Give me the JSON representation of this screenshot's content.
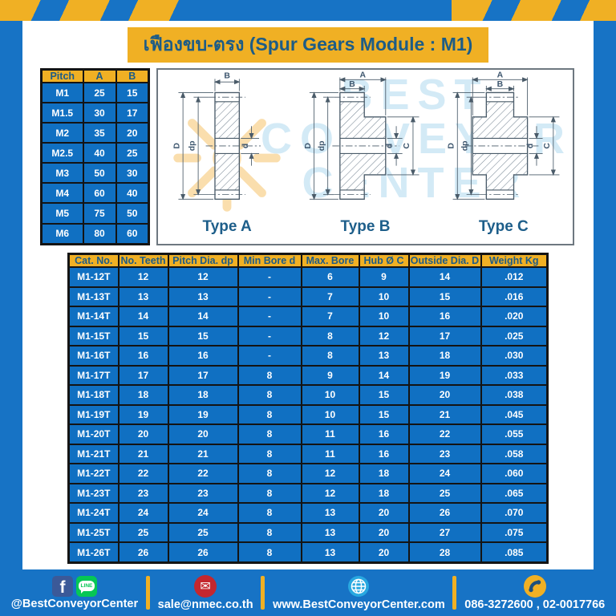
{
  "title": "เฟืองขบ-ตรง (Spur Gears Module : M1)",
  "colors": {
    "background_blue": "#1773c5",
    "cell_blue": "#1070c2",
    "accent_yellow": "#f0b024",
    "navy_text": "#1d5c86",
    "facebook_blue": "#3b5998",
    "line_green": "#06c755",
    "email_red": "#c4272e",
    "globe_blue": "#29a8e0"
  },
  "pitch_table": {
    "headers": [
      "Pitch",
      "A",
      "B"
    ],
    "rows": [
      [
        "M1",
        "25",
        "15"
      ],
      [
        "M1.5",
        "30",
        "17"
      ],
      [
        "M2",
        "35",
        "20"
      ],
      [
        "M2.5",
        "40",
        "25"
      ],
      [
        "M3",
        "50",
        "30"
      ],
      [
        "M4",
        "60",
        "40"
      ],
      [
        "M5",
        "75",
        "50"
      ],
      [
        "M6",
        "80",
        "60"
      ]
    ]
  },
  "drawings": {
    "watermark": {
      "line1": "BEST",
      "line2": "CONVEYOR",
      "line3": "CENTER"
    },
    "type_a": {
      "label": "Type A",
      "dim_face_width": "B",
      "dim_outside": "D",
      "dim_pitch": "dp",
      "dim_bore": "d"
    },
    "type_b": {
      "label": "Type B",
      "dim_total_width": "A",
      "dim_face_width": "B",
      "dim_outside": "D",
      "dim_pitch": "dp",
      "dim_bore": "d",
      "dim_hub": "C"
    },
    "type_c": {
      "label": "Type C",
      "dim_total_width": "A",
      "dim_face_width": "B",
      "dim_outside": "D",
      "dim_pitch": "dp",
      "dim_bore": "d",
      "dim_hub": "C"
    }
  },
  "main_table": {
    "headers": [
      "Cat. No.",
      "No. Teeth",
      "Pitch Dia. dp",
      "Min Bore d",
      "Max. Bore",
      "Hub Ø C",
      "Outside Dia. D",
      "Weight Kg"
    ],
    "rows": [
      [
        "M1-12T",
        "12",
        "12",
        "-",
        "6",
        "9",
        "14",
        ".012"
      ],
      [
        "M1-13T",
        "13",
        "13",
        "-",
        "7",
        "10",
        "15",
        ".016"
      ],
      [
        "M1-14T",
        "14",
        "14",
        "-",
        "7",
        "10",
        "16",
        ".020"
      ],
      [
        "M1-15T",
        "15",
        "15",
        "-",
        "8",
        "12",
        "17",
        ".025"
      ],
      [
        "M1-16T",
        "16",
        "16",
        "-",
        "8",
        "13",
        "18",
        ".030"
      ],
      [
        "M1-17T",
        "17",
        "17",
        "8",
        "9",
        "14",
        "19",
        ".033"
      ],
      [
        "M1-18T",
        "18",
        "18",
        "8",
        "10",
        "15",
        "20",
        ".038"
      ],
      [
        "M1-19T",
        "19",
        "19",
        "8",
        "10",
        "15",
        "21",
        ".045"
      ],
      [
        "M1-20T",
        "20",
        "20",
        "8",
        "11",
        "16",
        "22",
        ".055"
      ],
      [
        "M1-21T",
        "21",
        "21",
        "8",
        "11",
        "16",
        "23",
        ".058"
      ],
      [
        "M1-22T",
        "22",
        "22",
        "8",
        "12",
        "18",
        "24",
        ".060"
      ],
      [
        "M1-23T",
        "23",
        "23",
        "8",
        "12",
        "18",
        "25",
        ".065"
      ],
      [
        "M1-24T",
        "24",
        "24",
        "8",
        "13",
        "20",
        "26",
        ".070"
      ],
      [
        "M1-25T",
        "25",
        "25",
        "8",
        "13",
        "20",
        "27",
        ".075"
      ],
      [
        "M1-26T",
        "26",
        "26",
        "8",
        "13",
        "20",
        "28",
        ".085"
      ]
    ]
  },
  "footer": {
    "facebook_label": "f",
    "line_label": "LINE",
    "social_handle": "@BestConveyorCenter",
    "email": "sale@nmec.co.th",
    "website": "www.BestConveyorCenter.com",
    "phone": "086-3272600 , 02-0017766"
  }
}
